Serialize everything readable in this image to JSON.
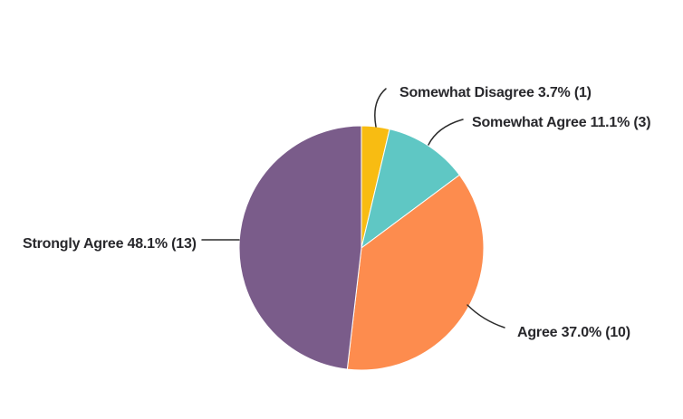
{
  "chart_data": {
    "type": "pie",
    "title": "",
    "legend_position": "none",
    "label_style": "outside-callout",
    "direction": "clockwise",
    "start_angle_deg": 0,
    "background": "#FFFFFF",
    "text_color": "#28282C",
    "leader_line_color": "#2B2B2B",
    "slices": [
      {
        "label": "Somewhat Disagree",
        "percent": 3.7,
        "count": 1,
        "color": "#F8BC12",
        "display": "Somewhat Disagree 3.7% (1)"
      },
      {
        "label": "Somewhat Agree",
        "percent": 11.1,
        "count": 3,
        "color": "#5FC7C4",
        "display": "Somewhat Agree 11.1% (3)"
      },
      {
        "label": "Agree",
        "percent": 37.0,
        "count": 10,
        "color": "#FD8C4E",
        "display": "Agree 37.0% (10)"
      },
      {
        "label": "Strongly Agree",
        "percent": 48.1,
        "count": 13,
        "color": "#7A5C8A",
        "display": "Strongly Agree 48.1% (13)"
      }
    ]
  }
}
